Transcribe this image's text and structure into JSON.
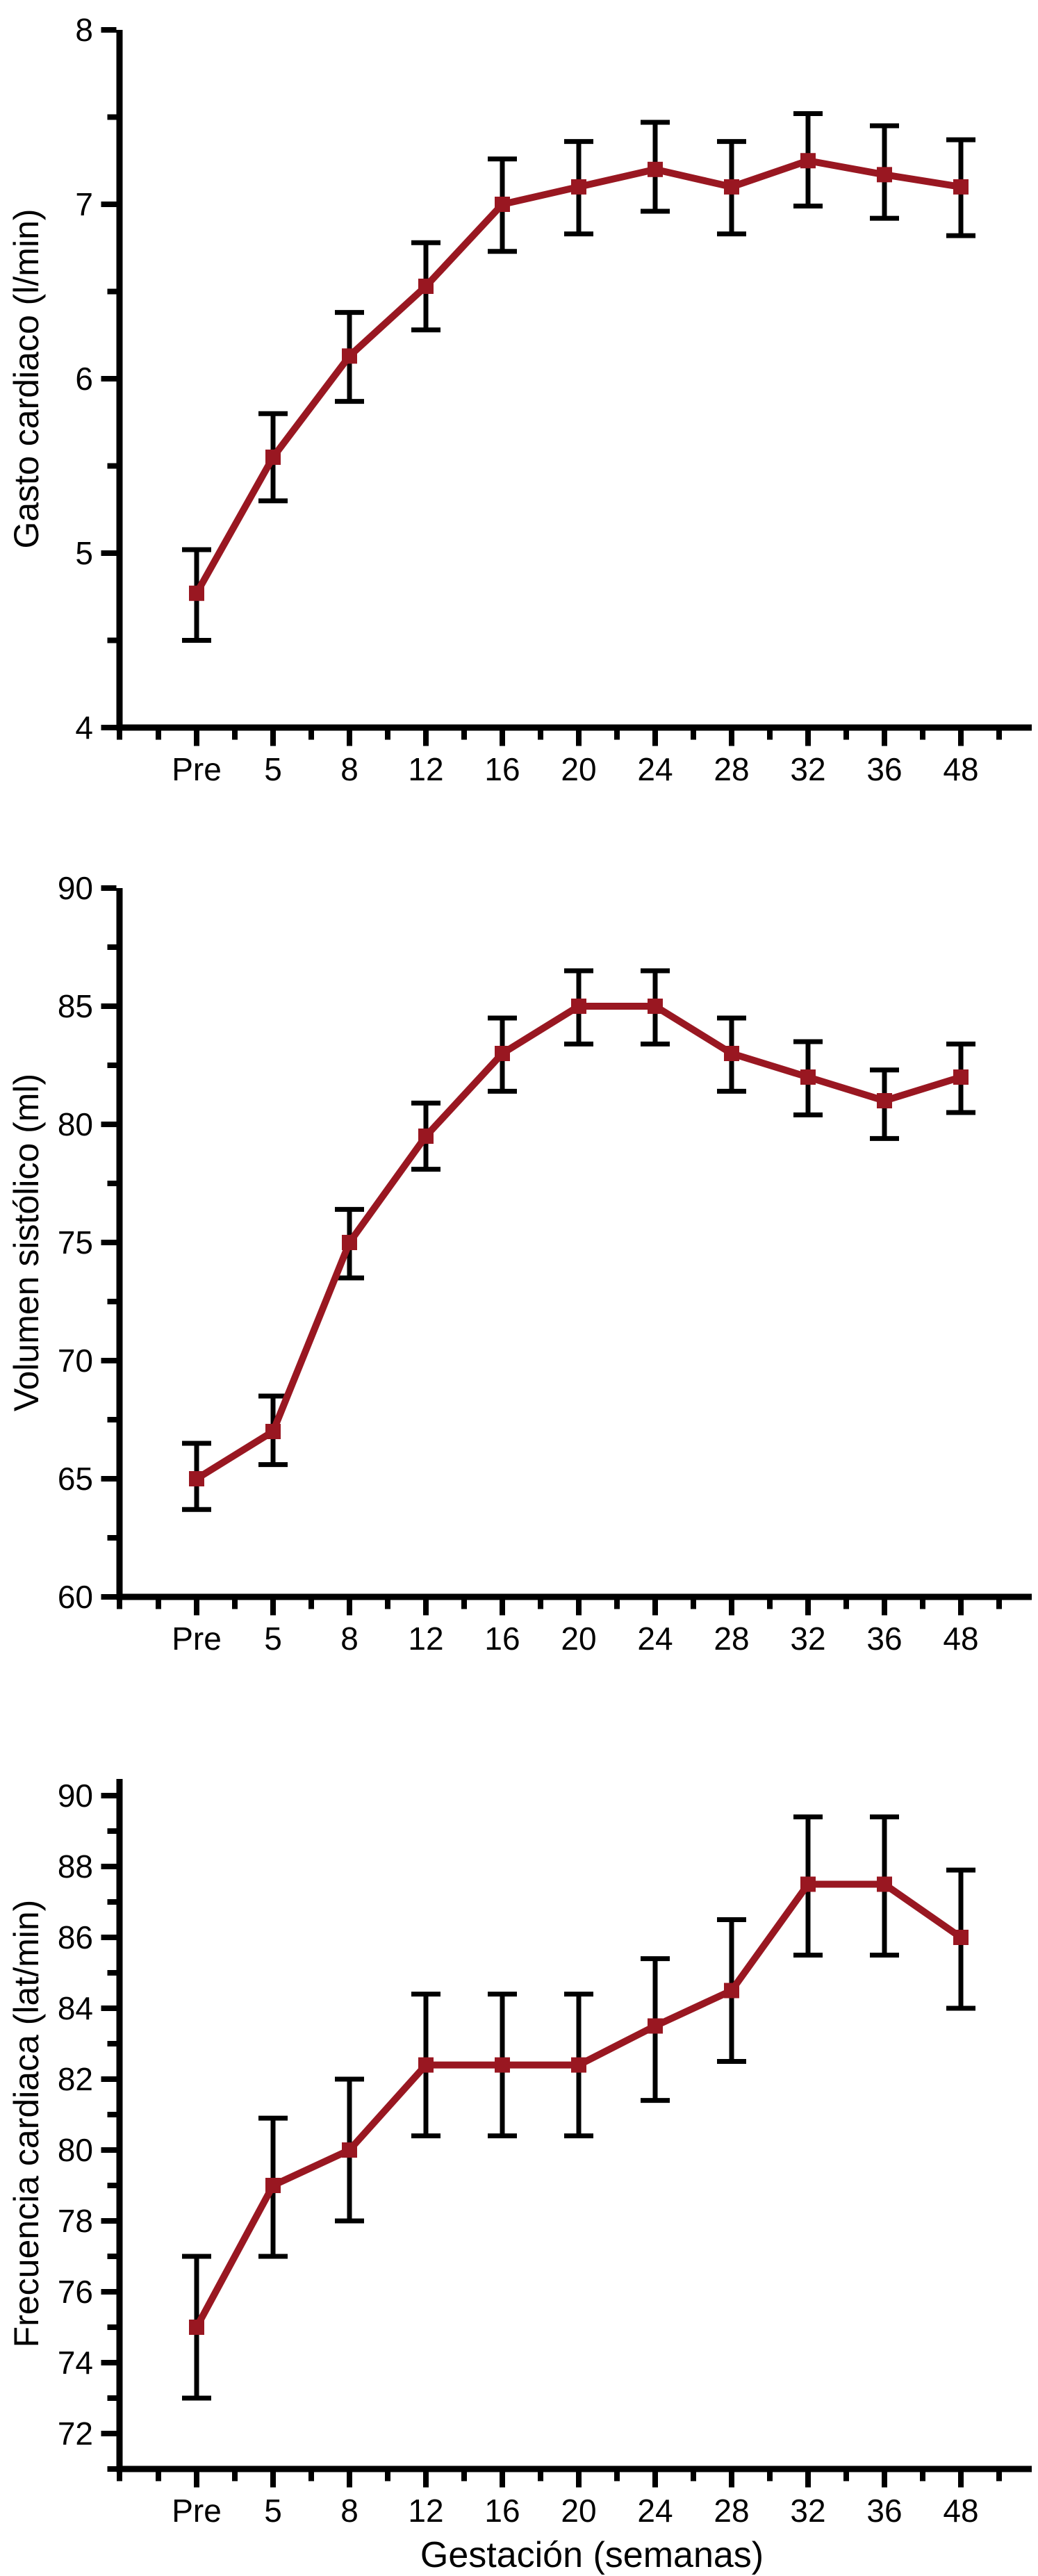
{
  "figure": {
    "background": "#ffffff",
    "axis_color": "#000000",
    "series_color": "#991721",
    "error_bar_color": "#000000",
    "marker_shape": "square"
  },
  "chart_data": [
    {
      "type": "line",
      "panel": 1,
      "title": "",
      "ylabel": "Gasto cardiaco (l/min)",
      "xlabel": "",
      "categories": [
        "Pre",
        "5",
        "8",
        "12",
        "16",
        "20",
        "24",
        "28",
        "32",
        "36",
        "48"
      ],
      "values": [
        4.77,
        5.55,
        6.13,
        6.53,
        7.0,
        7.1,
        7.2,
        7.1,
        7.25,
        7.17,
        7.1
      ],
      "err_low": [
        4.5,
        5.3,
        5.87,
        6.28,
        6.73,
        6.83,
        6.96,
        6.83,
        6.99,
        6.92,
        6.82
      ],
      "err_high": [
        5.02,
        5.8,
        6.38,
        6.78,
        7.26,
        7.36,
        7.47,
        7.36,
        7.52,
        7.45,
        7.37
      ],
      "ylim": [
        4,
        8
      ],
      "yticks": [
        4,
        5,
        6,
        7,
        8
      ],
      "yticks_minor": [
        4.5,
        5.5,
        6.5,
        7.5
      ],
      "grid": false,
      "legend": null
    },
    {
      "type": "line",
      "panel": 2,
      "title": "",
      "ylabel": "Volumen sistólico (ml)",
      "xlabel": "",
      "categories": [
        "Pre",
        "5",
        "8",
        "12",
        "16",
        "20",
        "24",
        "28",
        "32",
        "36",
        "48"
      ],
      "values": [
        65,
        67,
        75,
        79.5,
        83,
        85,
        85,
        83,
        82,
        81,
        82
      ],
      "err_low": [
        63.7,
        65.6,
        73.5,
        78.1,
        81.4,
        83.4,
        83.4,
        81.4,
        80.4,
        79.4,
        80.5
      ],
      "err_high": [
        66.5,
        68.5,
        76.4,
        80.9,
        84.5,
        86.5,
        86.5,
        84.5,
        83.5,
        82.3,
        83.4
      ],
      "ylim": [
        60,
        90
      ],
      "yticks": [
        60,
        65,
        70,
        75,
        80,
        85,
        90
      ],
      "yticks_minor": [
        62.5,
        67.5,
        72.5,
        77.5,
        82.5,
        87.5
      ],
      "grid": false,
      "legend": null
    },
    {
      "type": "line",
      "panel": 3,
      "title": "",
      "ylabel": "Frecuencia cardiaca (lat/min)",
      "xlabel": "Gestación (semanas)",
      "categories": [
        "Pre",
        "5",
        "8",
        "12",
        "16",
        "20",
        "24",
        "28",
        "32",
        "36",
        "48"
      ],
      "values": [
        75,
        79,
        80,
        82.4,
        82.4,
        82.4,
        83.5,
        84.5,
        87.5,
        87.5,
        86
      ],
      "err_low": [
        73,
        77,
        78,
        80.4,
        80.4,
        80.4,
        81.4,
        82.5,
        85.5,
        85.5,
        84
      ],
      "err_high": [
        77,
        80.9,
        82,
        84.4,
        84.4,
        84.4,
        85.4,
        86.5,
        89.4,
        89.4,
        87.9
      ],
      "ylim": [
        71,
        90.5
      ],
      "yticks": [
        72,
        74,
        76,
        78,
        80,
        82,
        84,
        86,
        88,
        90
      ],
      "yticks_minor": [
        71,
        73,
        75,
        77,
        79,
        81,
        83,
        85,
        87,
        89
      ],
      "grid": false,
      "legend": null
    }
  ]
}
